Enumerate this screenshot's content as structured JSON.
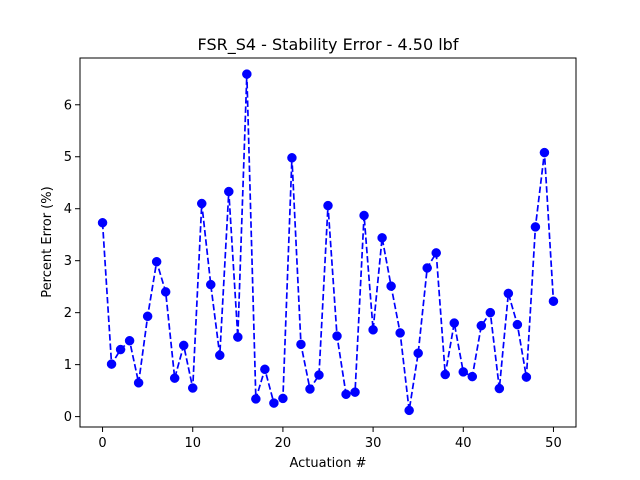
{
  "chart_data": {
    "type": "line",
    "title": "FSR_S4 - Stability Error - 4.50 lbf",
    "xlabel": "Actuation #",
    "ylabel": "Percent Error (%)",
    "xlim": [
      -2.5,
      52.5
    ],
    "ylim": [
      -0.2,
      6.9
    ],
    "xticks": [
      0,
      10,
      20,
      30,
      40,
      50
    ],
    "yticks": [
      0,
      1,
      2,
      3,
      4,
      5,
      6
    ],
    "grid": false,
    "series": [
      {
        "color": "#0000ff",
        "line_style": "dashed",
        "marker": "circle",
        "x": [
          0,
          1,
          2,
          3,
          4,
          5,
          6,
          7,
          8,
          9,
          10,
          11,
          12,
          13,
          14,
          15,
          16,
          17,
          18,
          19,
          20,
          21,
          22,
          23,
          24,
          25,
          26,
          27,
          28,
          29,
          30,
          31,
          32,
          33,
          34,
          35,
          36,
          37,
          38,
          39,
          40,
          41,
          42,
          43,
          44,
          45,
          46,
          47,
          48,
          49,
          50
        ],
        "y": [
          3.73,
          1.01,
          1.29,
          1.46,
          0.65,
          1.93,
          2.98,
          2.4,
          0.74,
          1.37,
          0.55,
          4.1,
          2.54,
          1.18,
          4.33,
          1.53,
          6.59,
          0.34,
          0.91,
          0.26,
          0.35,
          4.98,
          1.39,
          0.53,
          0.8,
          4.06,
          1.55,
          0.43,
          0.47,
          3.87,
          1.67,
          3.44,
          2.51,
          1.61,
          0.12,
          1.22,
          2.86,
          3.15,
          0.81,
          1.8,
          0.86,
          0.77,
          1.75,
          2.0,
          0.54,
          2.37,
          1.77,
          0.76,
          3.65,
          5.08,
          2.22
        ]
      }
    ]
  }
}
